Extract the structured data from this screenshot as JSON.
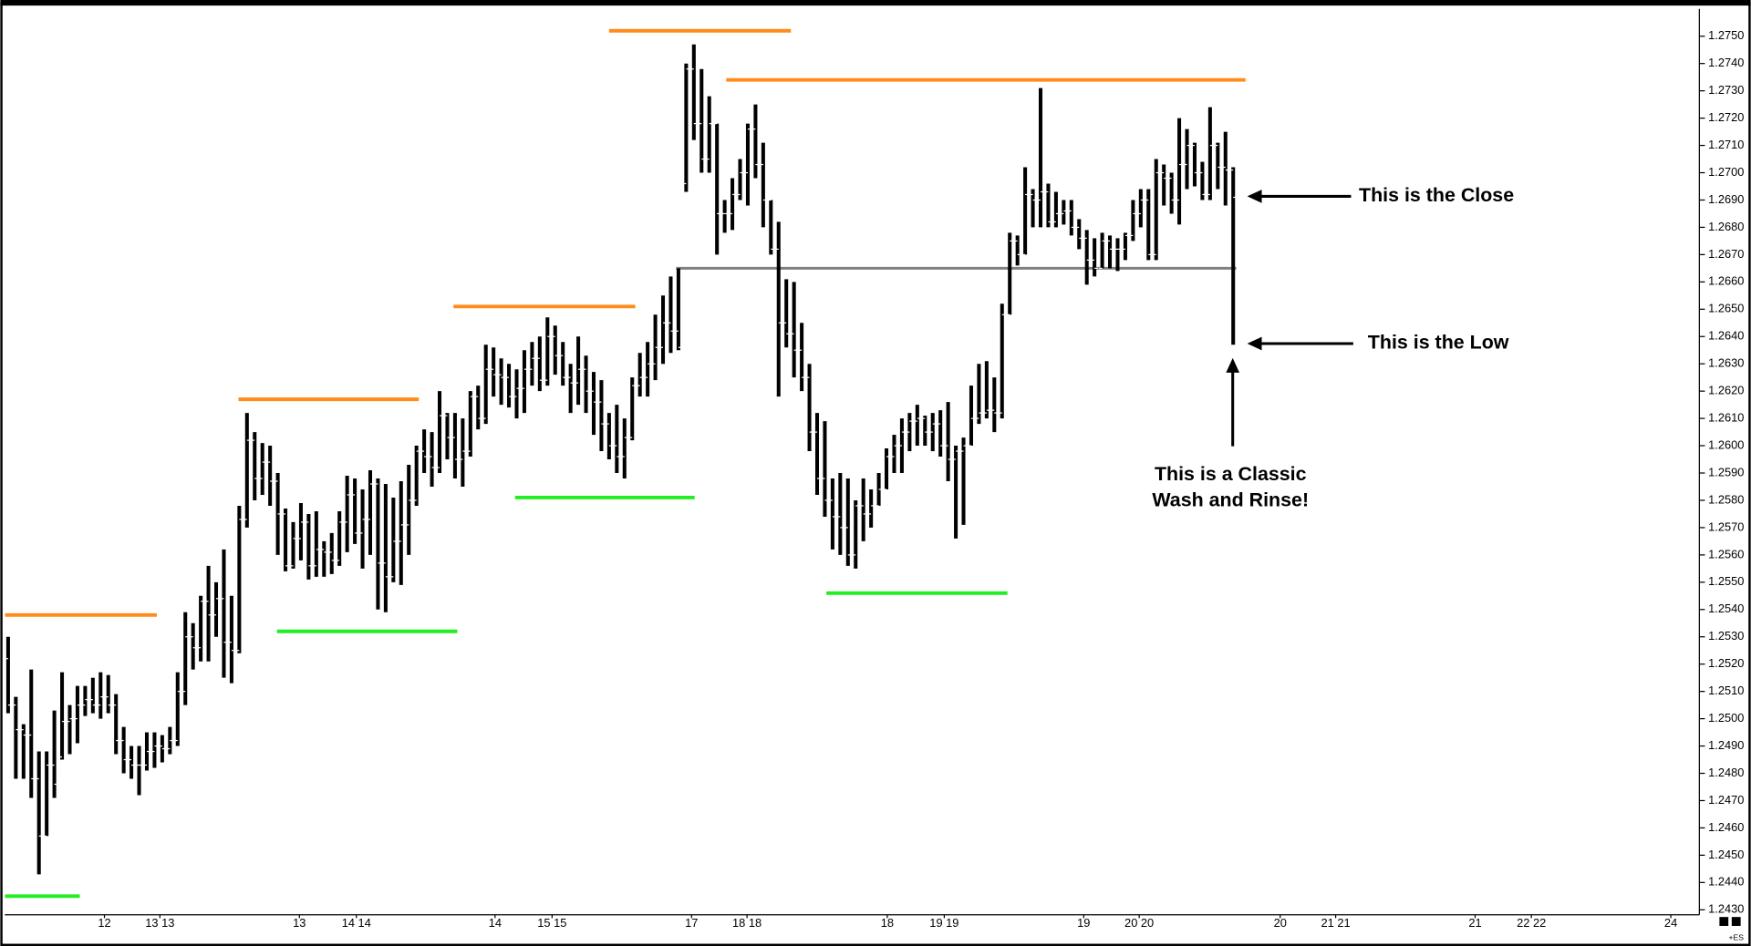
{
  "chart_data": {
    "type": "ohlc",
    "symbol": "+ES",
    "xlim": [
      0,
      220
    ],
    "ylim": [
      1.2429,
      1.276
    ],
    "yticks": [
      {
        "value": 1.243,
        "label": "1.2430"
      },
      {
        "value": 1.244,
        "label": "1.2440"
      },
      {
        "value": 1.245,
        "label": "1.2450"
      },
      {
        "value": 1.246,
        "label": "1.2460"
      },
      {
        "value": 1.247,
        "label": "1.2470"
      },
      {
        "value": 1.248,
        "label": "1.2480"
      },
      {
        "value": 1.249,
        "label": "1.2490"
      },
      {
        "value": 1.25,
        "label": "1.2500"
      },
      {
        "value": 1.251,
        "label": "1.2510"
      },
      {
        "value": 1.252,
        "label": "1.2520"
      },
      {
        "value": 1.253,
        "label": "1.2530"
      },
      {
        "value": 1.254,
        "label": "1.2540"
      },
      {
        "value": 1.255,
        "label": "1.2550"
      },
      {
        "value": 1.256,
        "label": "1.2560"
      },
      {
        "value": 1.257,
        "label": "1.2570"
      },
      {
        "value": 1.258,
        "label": "1.2580"
      },
      {
        "value": 1.259,
        "label": "1.2590"
      },
      {
        "value": 1.26,
        "label": "1.2600"
      },
      {
        "value": 1.261,
        "label": "1.2610"
      },
      {
        "value": 1.262,
        "label": "1.2620"
      },
      {
        "value": 1.263,
        "label": "1.2630"
      },
      {
        "value": 1.264,
        "label": "1.2640"
      },
      {
        "value": 1.265,
        "label": "1.2650"
      },
      {
        "value": 1.266,
        "label": "1.2660"
      },
      {
        "value": 1.267,
        "label": "1.2670"
      },
      {
        "value": 1.268,
        "label": "1.2680"
      },
      {
        "value": 1.269,
        "label": "1.2690"
      },
      {
        "value": 1.27,
        "label": "1.2700"
      },
      {
        "value": 1.271,
        "label": "1.2710"
      },
      {
        "value": 1.272,
        "label": "1.2720"
      },
      {
        "value": 1.273,
        "label": "1.2730"
      },
      {
        "value": 1.274,
        "label": "1.2740"
      },
      {
        "value": 1.275,
        "label": "1.2750"
      }
    ],
    "xticks": [
      {
        "value": 13.0,
        "label": "12"
      },
      {
        "value": 20.2,
        "label": "13 13"
      },
      {
        "value": 38.3,
        "label": "13"
      },
      {
        "value": 45.7,
        "label": "14 14"
      },
      {
        "value": 63.7,
        "label": "14"
      },
      {
        "value": 71.1,
        "label": "15 15"
      },
      {
        "value": 89.2,
        "label": "17"
      },
      {
        "value": 96.4,
        "label": "18 18"
      },
      {
        "value": 114.6,
        "label": "18"
      },
      {
        "value": 122.0,
        "label": "19 19"
      },
      {
        "value": 140.1,
        "label": "19"
      },
      {
        "value": 147.3,
        "label": "20 20"
      },
      {
        "value": 165.6,
        "label": "20"
      },
      {
        "value": 172.8,
        "label": "21 21"
      },
      {
        "value": 190.9,
        "label": "21"
      },
      {
        "value": 198.2,
        "label": "22 22"
      },
      {
        "value": 216.3,
        "label": "24"
      }
    ],
    "color": "#000000",
    "open": [
      1.2522,
      1.2505,
      1.2496,
      1.2494,
      1.2478,
      1.2457,
      1.2483,
      1.2486,
      1.2499,
      1.25,
      1.2505,
      1.2507,
      1.2505,
      1.2508,
      1.2505,
      1.2492,
      1.2485,
      1.2483,
      1.2483,
      1.2488,
      1.249,
      1.2489,
      1.2492,
      1.251,
      1.253,
      1.2526,
      1.2543,
      1.2538,
      1.2544,
      1.2528,
      1.2525,
      1.2573,
      1.2602,
      1.2588,
      1.2594,
      1.2587,
      1.2575,
      1.2556,
      1.2566,
      1.2572,
      1.2556,
      1.2562,
      1.2561,
      1.2558,
      1.2572,
      1.2582,
      1.2568,
      1.2573,
      1.2586,
      1.2557,
      1.2552,
      1.2565,
      1.2571,
      1.258,
      1.2598,
      1.2596,
      1.2592,
      1.2611,
      1.2603,
      1.2595,
      1.2598,
      1.2618,
      1.261,
      1.2628,
      1.2626,
      1.2625,
      1.2618,
      1.2621,
      1.2628,
      1.2632,
      1.2624,
      1.264,
      1.2633,
      1.2625,
      1.2623,
      1.2628,
      1.262,
      1.2616,
      1.2608,
      1.26,
      1.2596,
      1.2603,
      1.2622,
      1.2625,
      1.263,
      1.2636,
      1.2645,
      1.2642,
      1.2696,
      1.2738,
      1.2718,
      1.2705,
      1.2718,
      1.2685,
      1.2685,
      1.2692,
      1.27,
      1.2716,
      1.2703,
      1.269,
      1.2672,
      1.2645,
      1.2641,
      1.2635,
      1.2625,
      1.2605,
      1.2588,
      1.258,
      1.2574,
      1.257,
      1.256,
      1.2578,
      1.2575,
      1.2578,
      1.2584,
      1.2596,
      1.26,
      1.2605,
      1.2609,
      1.261,
      1.2605,
      1.2608,
      1.26,
      1.2595,
      1.2598,
      1.26,
      1.261,
      1.2612,
      1.2613,
      1.2612,
      1.2648,
      1.2675,
      1.267,
      1.2692,
      1.269,
      1.2693,
      1.2682,
      1.2685,
      1.2686,
      1.268,
      1.2676,
      1.2668,
      1.2665,
      1.2675,
      1.2672,
      1.2672,
      1.2677,
      1.2685,
      1.269,
      1.267,
      1.27,
      1.2698,
      1.269,
      1.2703,
      1.271,
      1.27,
      1.2692,
      1.271,
      1.2702,
      1.2701
    ],
    "high": [
      1.253,
      1.2508,
      1.2498,
      1.2518,
      1.2488,
      1.2488,
      1.2503,
      1.2517,
      1.2505,
      1.2512,
      1.2512,
      1.2515,
      1.2517,
      1.2516,
      1.2509,
      1.2497,
      1.249,
      1.249,
      1.2495,
      1.2495,
      1.2494,
      1.2497,
      1.2517,
      1.2539,
      1.2535,
      1.2545,
      1.2556,
      1.255,
      1.2562,
      1.2545,
      1.2578,
      1.2612,
      1.2605,
      1.2601,
      1.26,
      1.259,
      1.2577,
      1.2572,
      1.2579,
      1.2575,
      1.2576,
      1.2565,
      1.2568,
      1.2576,
      1.2589,
      1.2588,
      1.2584,
      1.2591,
      1.2588,
      1.2586,
      1.2581,
      1.2587,
      1.2593,
      1.26,
      1.2606,
      1.2605,
      1.262,
      1.2612,
      1.2612,
      1.261,
      1.262,
      1.2622,
      1.2637,
      1.2636,
      1.2632,
      1.263,
      1.2628,
      1.2635,
      1.2638,
      1.264,
      1.2647,
      1.2644,
      1.2638,
      1.263,
      1.264,
      1.2633,
      1.2627,
      1.2624,
      1.2612,
      1.2615,
      1.261,
      1.2625,
      1.2634,
      1.2638,
      1.2648,
      1.2655,
      1.2662,
      1.2665,
      1.274,
      1.2747,
      1.2738,
      1.2728,
      1.2718,
      1.269,
      1.2698,
      1.2705,
      1.2718,
      1.2725,
      1.2711,
      1.269,
      1.2682,
      1.2661,
      1.266,
      1.2645,
      1.263,
      1.2612,
      1.2609,
      1.2588,
      1.259,
      1.2588,
      1.258,
      1.2588,
      1.2584,
      1.259,
      1.2599,
      1.2604,
      1.261,
      1.2612,
      1.2615,
      1.2611,
      1.2612,
      1.2613,
      1.2616,
      1.26,
      1.2603,
      1.2622,
      1.263,
      1.2631,
      1.2625,
      1.2652,
      1.2678,
      1.2677,
      1.2702,
      1.2694,
      1.2731,
      1.2696,
      1.2693,
      1.269,
      1.269,
      1.2683,
      1.2679,
      1.2676,
      1.2678,
      1.2677,
      1.2676,
      1.2678,
      1.269,
      1.2694,
      1.2694,
      1.2705,
      1.2703,
      1.27,
      1.272,
      1.2716,
      1.2711,
      1.2704,
      1.2724,
      1.2711,
      1.2715,
      1.2702
    ],
    "low": [
      1.2502,
      1.2478,
      1.2478,
      1.2471,
      1.2443,
      1.2457,
      1.2471,
      1.2485,
      1.2487,
      1.2491,
      1.2501,
      1.2502,
      1.25,
      1.2502,
      1.2487,
      1.248,
      1.2478,
      1.2472,
      1.2481,
      1.2482,
      1.2484,
      1.2487,
      1.249,
      1.2505,
      1.2518,
      1.2521,
      1.2521,
      1.253,
      1.2515,
      1.2513,
      1.2524,
      1.257,
      1.258,
      1.2582,
      1.2578,
      1.256,
      1.2554,
      1.2555,
      1.2558,
      1.2551,
      1.2552,
      1.2552,
      1.2553,
      1.2556,
      1.2561,
      1.2564,
      1.2555,
      1.256,
      1.254,
      1.2539,
      1.255,
      1.2549,
      1.256,
      1.2578,
      1.259,
      1.2585,
      1.259,
      1.2595,
      1.2588,
      1.2585,
      1.2596,
      1.2606,
      1.2608,
      1.2618,
      1.2615,
      1.2614,
      1.261,
      1.2612,
      1.2622,
      1.262,
      1.2622,
      1.2626,
      1.2622,
      1.2612,
      1.2615,
      1.2612,
      1.2604,
      1.2598,
      1.2595,
      1.259,
      1.2588,
      1.2602,
      1.2618,
      1.2618,
      1.2624,
      1.263,
      1.2634,
      1.2635,
      1.2693,
      1.2712,
      1.27,
      1.27,
      1.267,
      1.2678,
      1.2679,
      1.269,
      1.2688,
      1.2698,
      1.268,
      1.267,
      1.2618,
      1.2636,
      1.2625,
      1.262,
      1.2598,
      1.2582,
      1.2574,
      1.2562,
      1.256,
      1.2556,
      1.2555,
      1.2565,
      1.257,
      1.2578,
      1.2584,
      1.259,
      1.259,
      1.2598,
      1.26,
      1.26,
      1.2598,
      1.2596,
      1.2587,
      1.2566,
      1.2571,
      1.26,
      1.2608,
      1.261,
      1.2605,
      1.261,
      1.2648,
      1.2666,
      1.267,
      1.268,
      1.268,
      1.268,
      1.268,
      1.2681,
      1.2677,
      1.2672,
      1.2659,
      1.2662,
      1.2665,
      1.2665,
      1.2664,
      1.2668,
      1.2675,
      1.268,
      1.2668,
      1.2668,
      1.2688,
      1.2685,
      1.2681,
      1.2694,
      1.2695,
      1.269,
      1.269,
      1.2694,
      1.2688,
      1.2637
    ],
    "close": [
      1.2505,
      1.2496,
      1.2494,
      1.2478,
      1.2457,
      1.2483,
      1.2476,
      1.2499,
      1.25,
      1.2505,
      1.2507,
      1.2505,
      1.2508,
      1.2505,
      1.2492,
      1.2485,
      1.2483,
      1.2483,
      1.2488,
      1.249,
      1.2489,
      1.2492,
      1.251,
      1.253,
      1.2526,
      1.2543,
      1.2538,
      1.2544,
      1.2528,
      1.2525,
      1.2573,
      1.2602,
      1.2588,
      1.2594,
      1.2587,
      1.2575,
      1.2556,
      1.2566,
      1.2572,
      1.2556,
      1.2562,
      1.2561,
      1.2558,
      1.2572,
      1.2582,
      1.2568,
      1.2573,
      1.2586,
      1.2557,
      1.2552,
      1.2565,
      1.2571,
      1.258,
      1.2598,
      1.2596,
      1.2592,
      1.2611,
      1.2603,
      1.2595,
      1.2598,
      1.2618,
      1.261,
      1.2628,
      1.2626,
      1.2625,
      1.2618,
      1.2621,
      1.2628,
      1.2632,
      1.2624,
      1.264,
      1.2633,
      1.2625,
      1.2623,
      1.2628,
      1.262,
      1.2616,
      1.2608,
      1.26,
      1.2596,
      1.2603,
      1.2622,
      1.2625,
      1.263,
      1.2636,
      1.2645,
      1.2642,
      1.2636,
      1.2738,
      1.2718,
      1.2705,
      1.2718,
      1.2685,
      1.2685,
      1.2692,
      1.27,
      1.2716,
      1.2703,
      1.269,
      1.2672,
      1.2645,
      1.2641,
      1.2635,
      1.2625,
      1.2605,
      1.2588,
      1.258,
      1.2574,
      1.257,
      1.256,
      1.2578,
      1.2575,
      1.2578,
      1.2584,
      1.2596,
      1.26,
      1.2605,
      1.2609,
      1.261,
      1.2605,
      1.2608,
      1.26,
      1.2595,
      1.2598,
      1.26,
      1.261,
      1.2612,
      1.2613,
      1.2612,
      1.2648,
      1.2675,
      1.267,
      1.2692,
      1.269,
      1.2693,
      1.2682,
      1.2685,
      1.2686,
      1.268,
      1.2676,
      1.2668,
      1.2665,
      1.2675,
      1.2672,
      1.2672,
      1.2677,
      1.2685,
      1.269,
      1.267,
      1.27,
      1.2698,
      1.269,
      1.2703,
      1.271,
      1.27,
      1.2692,
      1.271,
      1.2702,
      1.2701,
      1.2691
    ],
    "levels": [
      {
        "value": 1.2538,
        "x": [
          0.1,
          19.8
        ],
        "color": "#ff8c1a"
      },
      {
        "value": 1.2617,
        "x": [
          30.4,
          53.8
        ],
        "color": "#ff8c1a"
      },
      {
        "value": 1.2651,
        "x": [
          58.3,
          81.9
        ],
        "color": "#ff8c1a"
      },
      {
        "value": 1.2752,
        "x": [
          78.5,
          102.1
        ],
        "color": "#ff8c1a"
      },
      {
        "value": 1.2734,
        "x": [
          93.7,
          161.1
        ],
        "color": "#ff8c1a"
      },
      {
        "value": 1.2435,
        "x": [
          0.1,
          9.8
        ],
        "color": "#22ee22"
      },
      {
        "value": 1.2532,
        "x": [
          35.4,
          58.8
        ],
        "color": "#22ee22"
      },
      {
        "value": 1.2581,
        "x": [
          66.3,
          89.6
        ],
        "color": "#22ee22"
      },
      {
        "value": 1.2546,
        "x": [
          106.7,
          130.2
        ],
        "color": "#22ee22"
      },
      {
        "value": 1.2665,
        "x": [
          87.2,
          159.9
        ],
        "color": "#808080"
      }
    ],
    "annotations": [
      "This is the Close",
      "This is the Low",
      "This is a Classic",
      "Wash and Rinse!"
    ]
  }
}
